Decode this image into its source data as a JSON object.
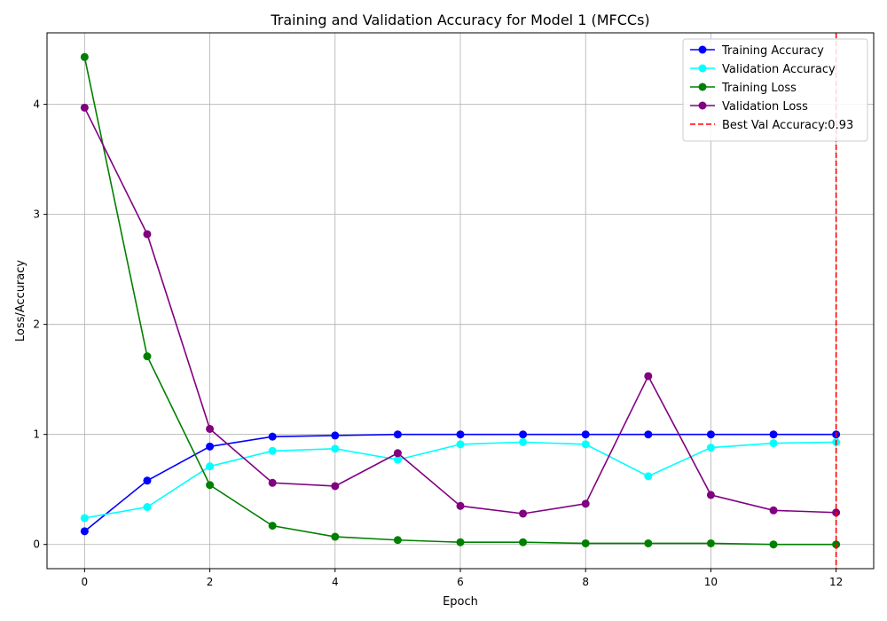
{
  "chart_data": {
    "type": "line",
    "title": "Training and Validation Accuracy for Model 1 (MFCCs)",
    "xlabel": "Epoch",
    "ylabel": "Loss/Accuracy",
    "xlim": [
      -0.6,
      12.6
    ],
    "ylim": [
      -0.22,
      4.65
    ],
    "xticks": [
      0,
      2,
      4,
      6,
      8,
      10,
      12
    ],
    "yticks": [
      0,
      1,
      2,
      3,
      4
    ],
    "grid": true,
    "legend_position": "top-right",
    "x": [
      0,
      1,
      2,
      3,
      4,
      5,
      6,
      7,
      8,
      9,
      10,
      11,
      12
    ],
    "series": [
      {
        "name": "Training Accuracy",
        "color": "#0000ff",
        "values": [
          0.12,
          0.58,
          0.89,
          0.98,
          0.99,
          1.0,
          1.0,
          1.0,
          1.0,
          1.0,
          1.0,
          1.0,
          1.0
        ]
      },
      {
        "name": "Validation Accuracy",
        "color": "#00ffff",
        "values": [
          0.24,
          0.34,
          0.71,
          0.85,
          0.87,
          0.77,
          0.91,
          0.93,
          0.91,
          0.62,
          0.88,
          0.92,
          0.93
        ]
      },
      {
        "name": "Training Loss",
        "color": "#008000",
        "values": [
          4.43,
          1.71,
          0.54,
          0.17,
          0.07,
          0.04,
          0.02,
          0.02,
          0.01,
          0.01,
          0.01,
          0.0,
          0.0
        ]
      },
      {
        "name": "Validation Loss",
        "color": "#800080",
        "values": [
          3.97,
          2.82,
          1.05,
          0.56,
          0.53,
          0.83,
          0.35,
          0.28,
          0.37,
          1.53,
          0.45,
          0.31,
          0.29
        ]
      }
    ],
    "vline": {
      "name": "Best Val Accuracy:0.93",
      "x": 12,
      "color": "#ff0000",
      "style": "dashed"
    }
  }
}
